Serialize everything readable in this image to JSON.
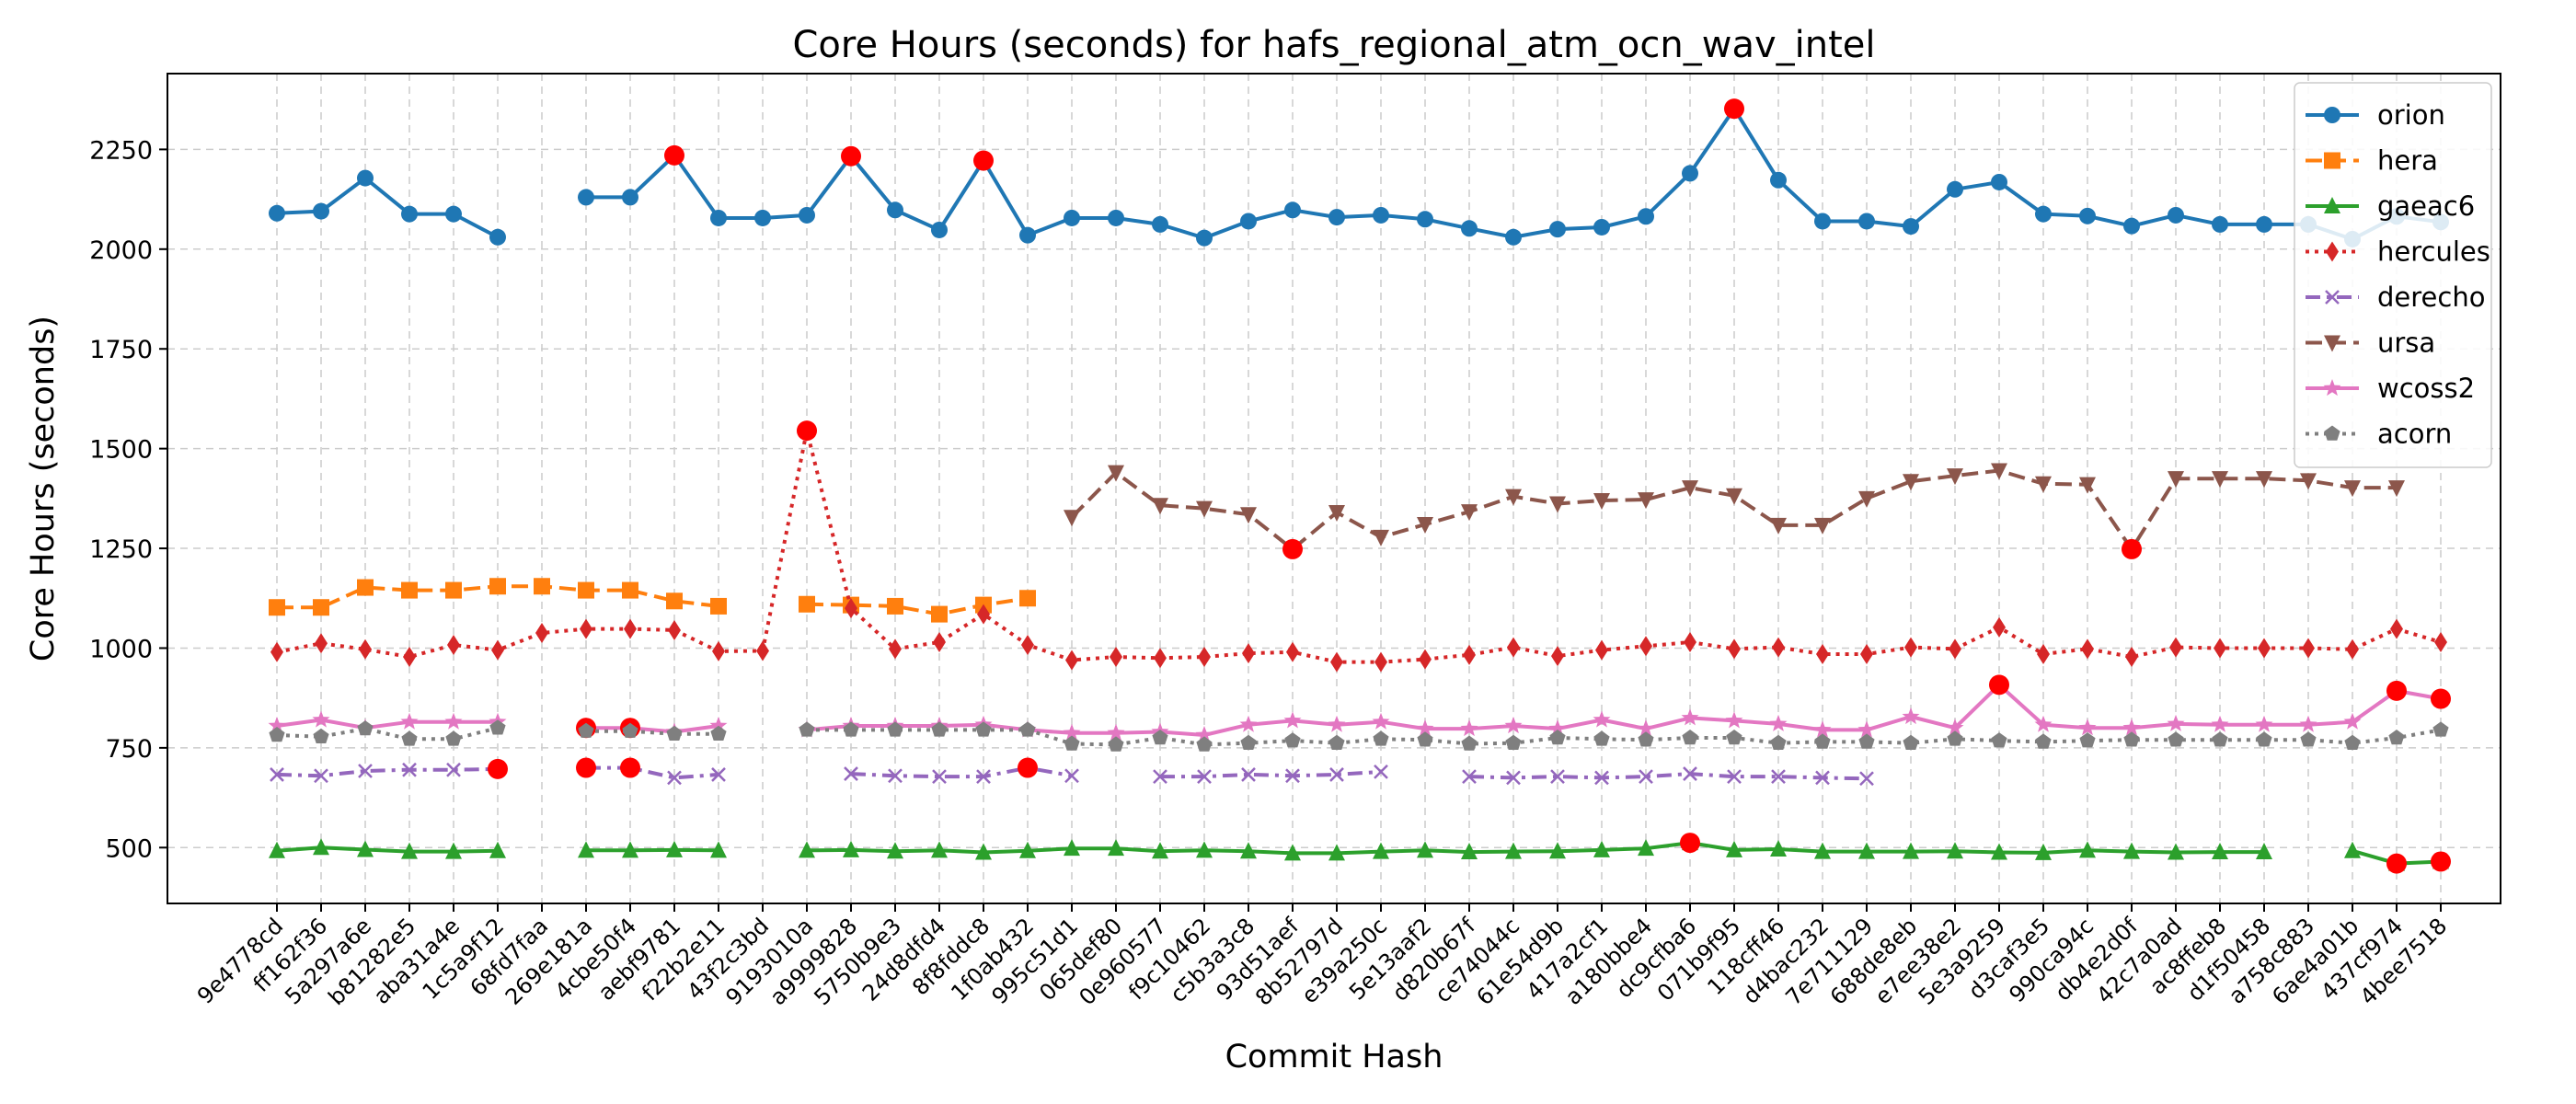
{
  "chart_data": {
    "type": "line",
    "title": "Core Hours (seconds) for hafs_regional_atm_ocn_wav_intel",
    "xlabel": "Commit Hash",
    "ylabel": "Core Hours (seconds)",
    "ylim": [
      360,
      2440
    ],
    "yticks": [
      500,
      750,
      1000,
      1250,
      1500,
      1750,
      2000,
      2250
    ],
    "grid": true,
    "legend_position": "top-right",
    "outlier_color": "#ff0000",
    "categories": [
      "9e4778cd",
      "ff162f36",
      "5a297a6e",
      "b81282e5",
      "aba31a4e",
      "1c5a9f12",
      "68fd7faa",
      "269e181a",
      "4cbe50f4",
      "aebf9781",
      "f22b2e11",
      "43f2c3bd",
      "9193010a",
      "a9999828",
      "5750b9e3",
      "24d8dfd4",
      "8f8fddc8",
      "1f0ab432",
      "995c51d1",
      "065def80",
      "0e960577",
      "f9c10462",
      "c5b3a3c8",
      "93d51aef",
      "8b52797d",
      "e39a250c",
      "5e13aaf2",
      "d820b67f",
      "ce74044c",
      "61e54d9b",
      "417a2cf1",
      "a180bbe4",
      "dc9cfba6",
      "071b9f95",
      "118cff46",
      "d4bac232",
      "7e711129",
      "688de8eb",
      "e7ee38e2",
      "5e3a9259",
      "d3caf3e5",
      "990ca94c",
      "db4e2d0f",
      "42c7a0ad",
      "ac8ffeb8",
      "d1f50458",
      "a758c883",
      "6ae4a01b",
      "437cf974",
      "4bee7518"
    ],
    "series": [
      {
        "name": "orion",
        "color": "#1f77b4",
        "marker": "circle",
        "dash": "solid",
        "values": [
          2090,
          2095,
          2178,
          2088,
          2088,
          2030,
          null,
          2130,
          2130,
          2235,
          2078,
          2078,
          2085,
          2233,
          2098,
          2048,
          2222,
          2035,
          2078,
          2078,
          2062,
          2028,
          2070,
          2098,
          2080,
          2085,
          2075,
          2052,
          2030,
          2050,
          2055,
          2082,
          2190,
          2352,
          2173,
          2070,
          2070,
          2057,
          2150,
          2168,
          2088,
          2083,
          2058,
          2085,
          2062,
          2062,
          2062,
          2025,
          2082,
          2068
        ],
        "outliers": [
          9,
          13,
          16,
          33
        ]
      },
      {
        "name": "hera",
        "color": "#ff7f0e",
        "marker": "square",
        "dash": "dashed",
        "values": [
          1102,
          1102,
          1152,
          1145,
          1145,
          1155,
          1155,
          1145,
          1145,
          1118,
          1105,
          null,
          1110,
          1108,
          1105,
          1085,
          1108,
          1125,
          null,
          null,
          null,
          null,
          null,
          null,
          null,
          null,
          null,
          null,
          null,
          null,
          null,
          null,
          null,
          null,
          null,
          null,
          null,
          null,
          null,
          null,
          null,
          null,
          null,
          null,
          null,
          null,
          null,
          null,
          null,
          null
        ],
        "outliers": []
      },
      {
        "name": "gaeac6",
        "color": "#2ca02c",
        "marker": "triangle-up",
        "dash": "solid",
        "values": [
          492,
          500,
          495,
          490,
          490,
          492,
          null,
          493,
          493,
          494,
          493,
          null,
          493,
          494,
          491,
          493,
          488,
          492,
          498,
          498,
          491,
          493,
          491,
          486,
          486,
          490,
          493,
          489,
          490,
          491,
          494,
          498,
          512,
          494,
          496,
          490,
          490,
          490,
          491,
          488,
          487,
          493,
          490,
          488,
          489,
          489,
          null,
          492,
          460,
          465
        ],
        "outliers": [
          32,
          48,
          49
        ]
      },
      {
        "name": "hercules",
        "color": "#d62728",
        "marker": "diamond",
        "dash": "dotted",
        "values": [
          990,
          1012,
          997,
          978,
          1008,
          995,
          1038,
          1048,
          1048,
          1045,
          992,
          993,
          1545,
          1100,
          998,
          1015,
          1085,
          1008,
          970,
          978,
          975,
          978,
          987,
          990,
          965,
          965,
          972,
          983,
          1002,
          980,
          995,
          1005,
          1015,
          998,
          1002,
          985,
          985,
          1002,
          998,
          1052,
          985,
          998,
          978,
          1002,
          1000,
          1000,
          1000,
          997,
          1048,
          1015
        ],
        "outliers": [
          12
        ]
      },
      {
        "name": "derecho",
        "color": "#9467bd",
        "marker": "x",
        "dash": "dashdot",
        "values": [
          683,
          680,
          692,
          695,
          695,
          697,
          null,
          700,
          700,
          675,
          683,
          null,
          null,
          685,
          680,
          678,
          678,
          700,
          680,
          null,
          678,
          678,
          683,
          680,
          683,
          690,
          null,
          678,
          675,
          678,
          675,
          678,
          685,
          678,
          678,
          675,
          673,
          null,
          null,
          null,
          null,
          null,
          null,
          null,
          null,
          null,
          null,
          null,
          null,
          null
        ],
        "outliers": [
          5,
          7,
          8,
          17
        ]
      },
      {
        "name": "ursa",
        "color": "#8c564b",
        "marker": "triangle-down",
        "dash": "dashed",
        "values": [
          null,
          null,
          null,
          null,
          null,
          null,
          null,
          null,
          null,
          null,
          null,
          null,
          null,
          null,
          null,
          null,
          null,
          null,
          1328,
          1440,
          1358,
          1350,
          1335,
          1248,
          1340,
          1278,
          1310,
          1342,
          1380,
          1362,
          1370,
          1372,
          1402,
          1382,
          1308,
          1308,
          1375,
          1418,
          1432,
          1445,
          1412,
          1410,
          1248,
          1425,
          1425,
          1425,
          1420,
          1402,
          1402,
          null
        ],
        "outliers": [
          23,
          42
        ]
      },
      {
        "name": "wcoss2",
        "color": "#e377c2",
        "marker": "star",
        "dash": "solid",
        "values": [
          805,
          820,
          800,
          815,
          815,
          815,
          null,
          800,
          800,
          790,
          805,
          null,
          795,
          805,
          805,
          805,
          808,
          795,
          787,
          787,
          790,
          782,
          808,
          818,
          808,
          815,
          798,
          798,
          805,
          798,
          820,
          798,
          825,
          818,
          810,
          795,
          795,
          828,
          800,
          908,
          808,
          800,
          800,
          810,
          808,
          808,
          808,
          815,
          893,
          873
        ],
        "outliers": [
          7,
          8,
          39,
          48,
          49
        ]
      },
      {
        "name": "acorn",
        "color": "#7f7f7f",
        "marker": "pentagon",
        "dash": "dotted",
        "values": [
          782,
          778,
          798,
          772,
          772,
          800,
          null,
          792,
          792,
          785,
          785,
          null,
          795,
          795,
          795,
          795,
          795,
          795,
          760,
          758,
          775,
          758,
          762,
          768,
          762,
          772,
          770,
          760,
          762,
          775,
          772,
          770,
          775,
          775,
          762,
          765,
          765,
          762,
          772,
          768,
          765,
          768,
          770,
          770,
          770,
          770,
          770,
          762,
          775,
          795
        ],
        "outliers": []
      }
    ]
  }
}
